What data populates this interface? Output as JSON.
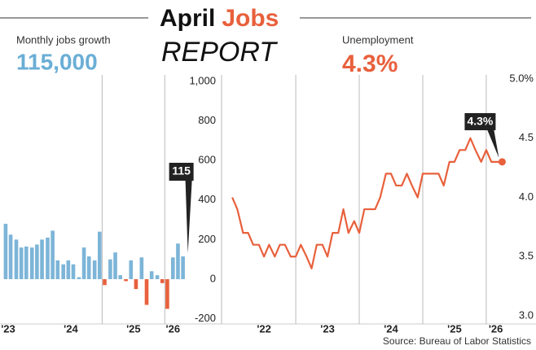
{
  "header": {
    "title_1": "April",
    "title_2": "Jobs",
    "title_3": "REPORT"
  },
  "source": "Source: Bureau of Labor Statistics",
  "chart_data": [
    {
      "type": "bar",
      "title": "Monthly jobs growth",
      "headline": "115,000",
      "annotation": "115",
      "color": "#7db5d8",
      "negative_color": "#e8603c",
      "x": [
        2023.46,
        2023.54,
        2023.63,
        2023.71,
        2023.79,
        2023.88,
        2023.96,
        2024.04,
        2024.13,
        2024.21,
        2024.29,
        2024.38,
        2024.46,
        2024.54,
        2024.63,
        2024.71,
        2024.79,
        2024.88,
        2024.96,
        2025.04,
        2025.13,
        2025.21,
        2025.29,
        2025.38,
        2025.46,
        2025.54,
        2025.63,
        2025.71,
        2025.79,
        2025.88,
        2025.96,
        2026.04,
        2026.13,
        2026.21,
        2026.29
      ],
      "values": [
        280,
        225,
        200,
        160,
        165,
        160,
        175,
        200,
        210,
        245,
        95,
        75,
        95,
        75,
        10,
        160,
        115,
        95,
        240,
        -30,
        100,
        135,
        20,
        -10,
        95,
        -50,
        110,
        -130,
        40,
        20,
        -20,
        -150,
        110,
        180,
        115
      ],
      "xlim": [
        2023.37,
        2026.36
      ],
      "xticks": [
        {
          "value": 2023.5,
          "label": "'23"
        },
        {
          "value": 2024.5,
          "label": "'24"
        },
        {
          "value": 2025.5,
          "label": "'25"
        },
        {
          "value": 2026.13,
          "label": "'26"
        }
      ],
      "xgrid": [
        2025,
        2026
      ],
      "ylim": [
        -214,
        1020
      ],
      "yticks": [
        {
          "value": 1000,
          "label": "1,000"
        },
        800,
        600,
        400,
        200,
        0,
        -200
      ]
    },
    {
      "type": "line",
      "title": "Unemployment",
      "headline": "4.3%",
      "annotation": "4.3%",
      "color": "#e8603c",
      "x": [
        2022.0,
        2022.08,
        2022.17,
        2022.25,
        2022.33,
        2022.42,
        2022.5,
        2022.58,
        2022.67,
        2022.75,
        2022.83,
        2022.92,
        2023.0,
        2023.08,
        2023.17,
        2023.25,
        2023.33,
        2023.42,
        2023.5,
        2023.58,
        2023.67,
        2023.75,
        2023.83,
        2023.92,
        2024.0,
        2024.08,
        2024.17,
        2024.25,
        2024.33,
        2024.42,
        2024.5,
        2024.58,
        2024.67,
        2024.75,
        2024.83,
        2024.92,
        2025.0,
        2025.08,
        2025.17,
        2025.25,
        2025.33,
        2025.42,
        2025.5,
        2025.58,
        2025.67,
        2025.75,
        2025.83,
        2025.92,
        2026.0,
        2026.08,
        2026.17,
        2026.25
      ],
      "values": [
        4.0,
        3.9,
        3.7,
        3.7,
        3.6,
        3.6,
        3.5,
        3.6,
        3.5,
        3.6,
        3.6,
        3.5,
        3.5,
        3.6,
        3.5,
        3.4,
        3.6,
        3.6,
        3.5,
        3.7,
        3.7,
        3.9,
        3.7,
        3.8,
        3.7,
        3.9,
        3.9,
        3.9,
        4.0,
        4.2,
        4.2,
        4.1,
        4.1,
        4.2,
        4.1,
        4.0,
        4.2,
        4.2,
        4.2,
        4.2,
        4.1,
        4.3,
        4.3,
        4.4,
        4.4,
        4.5,
        4.4,
        4.3,
        4.4,
        4.3,
        4.3,
        4.3
      ],
      "xlim": [
        2021.96,
        2026.36
      ],
      "xticks": [
        {
          "value": 2022.5,
          "label": "'22"
        },
        {
          "value": 2023.5,
          "label": "'23"
        },
        {
          "value": 2024.5,
          "label": "'24"
        },
        {
          "value": 2025.5,
          "label": "'25"
        },
        {
          "value": 2026.15,
          "label": "'26"
        }
      ],
      "xgrid": [
        2023,
        2024,
        2025,
        2026
      ],
      "ylim": [
        3,
        5
      ],
      "yticks": [
        {
          "value": 5,
          "label": "5.0%"
        },
        4.5,
        {
          "value": 4,
          "label": "4.0"
        },
        3.5,
        {
          "value": 3,
          "label": "3.0"
        }
      ]
    }
  ]
}
